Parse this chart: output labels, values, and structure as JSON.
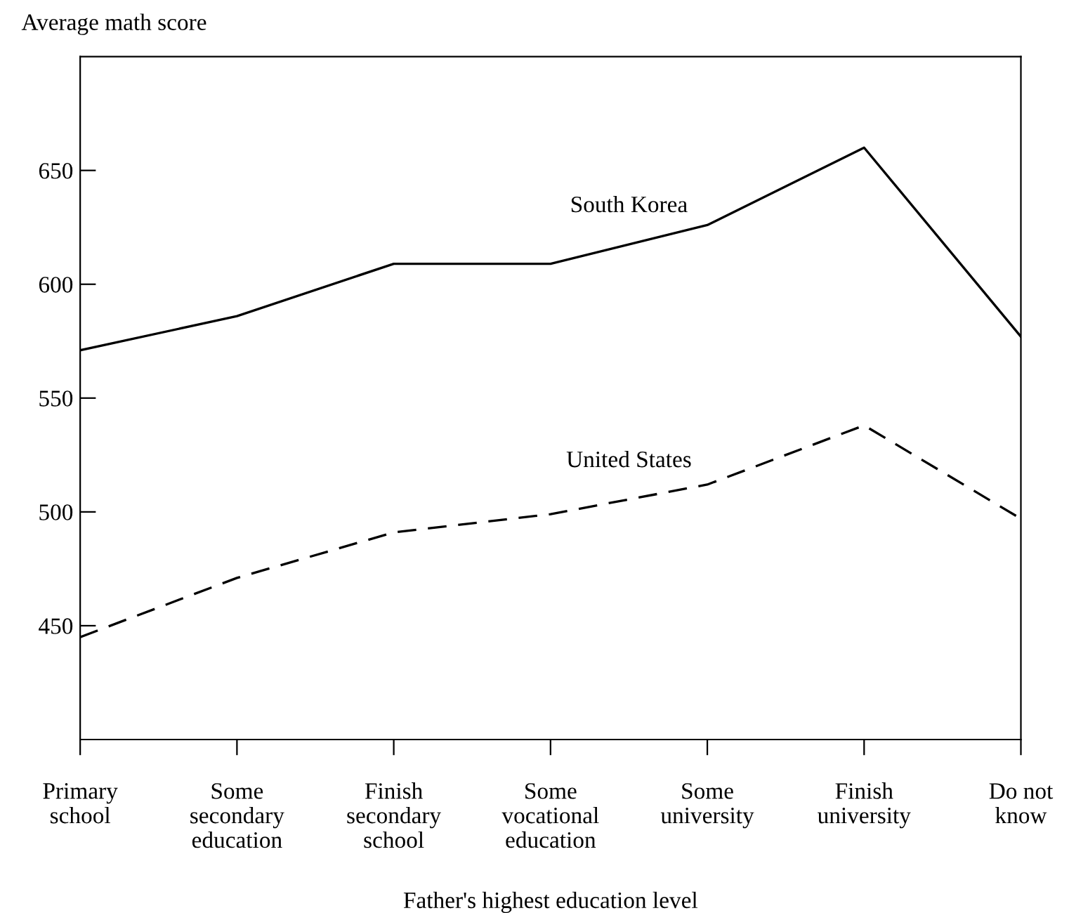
{
  "chart_data": {
    "type": "line",
    "ylabel": "Average math score",
    "xlabel": "Father's highest education level",
    "categories": [
      "Primary\nschool",
      "Some\nsecondary\neducation",
      "Finish\nsecondary\nschool",
      "Some\nvocational\neducation",
      "Some\nuniversity",
      "Finish\nuniversity",
      "Do not\nknow"
    ],
    "series": [
      {
        "name": "South Korea",
        "color": "#000000",
        "line_style": "solid",
        "values": [
          571,
          586,
          609,
          609,
          626,
          660,
          577
        ]
      },
      {
        "name": "United States",
        "color": "#000000",
        "line_style": "dashed",
        "values": [
          445,
          471,
          491,
          499,
          512,
          538,
          497
        ]
      }
    ],
    "ylim": [
      400,
      700
    ],
    "yticks": [
      450,
      500,
      550,
      600,
      650
    ],
    "grid": false,
    "legend": false,
    "marker": "none"
  }
}
